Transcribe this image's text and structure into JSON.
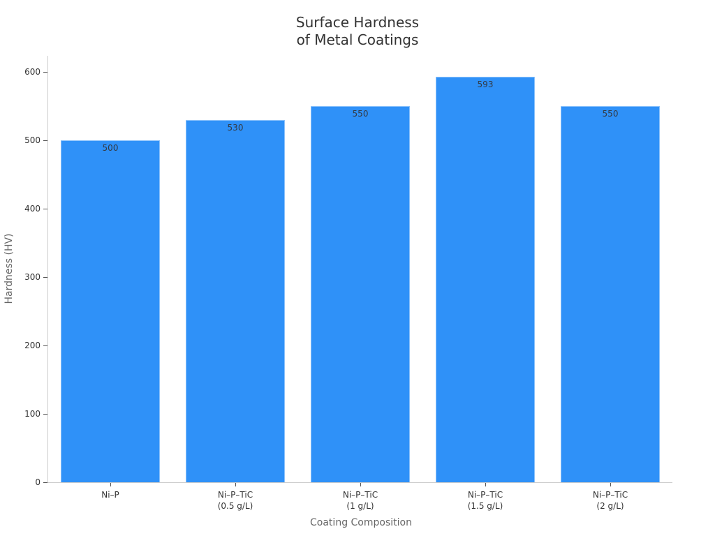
{
  "chart_data": {
    "type": "bar",
    "title": "Surface Hardness of Metal Coatings",
    "title_lines": [
      "Surface Hardness",
      "of Metal Coatings"
    ],
    "xlabel": "Coating Composition",
    "ylabel": "Hardness (HV)",
    "categories": [
      "Ni–P",
      "Ni–P–TiC (0.5 g/L)",
      "Ni–P–TiC (1 g/L)",
      "Ni–P–TiC (1.5 g/L)",
      "Ni–P–TiC (2 g/L)"
    ],
    "category_lines": [
      [
        "Ni–P"
      ],
      [
        "Ni–P–TiC",
        "(0.5 g/L)"
      ],
      [
        "Ni–P–TiC",
        "(1 g/L)"
      ],
      [
        "Ni–P–TiC",
        "(1.5 g/L)"
      ],
      [
        "Ni–P–TiC",
        "(2 g/L)"
      ]
    ],
    "values": [
      500,
      530,
      550,
      593,
      550
    ],
    "data_labels": [
      "500",
      "530",
      "550",
      "593",
      "550"
    ],
    "yticks": [
      0,
      100,
      200,
      300,
      400,
      500,
      600
    ],
    "ytick_labels": [
      "0",
      "100",
      "200",
      "300",
      "400",
      "500",
      "600"
    ],
    "ylim": [
      0,
      624
    ],
    "grid": false,
    "legend": null,
    "bar_color": "#2f91f8",
    "bar_edge_color": "#8cc2fb"
  }
}
